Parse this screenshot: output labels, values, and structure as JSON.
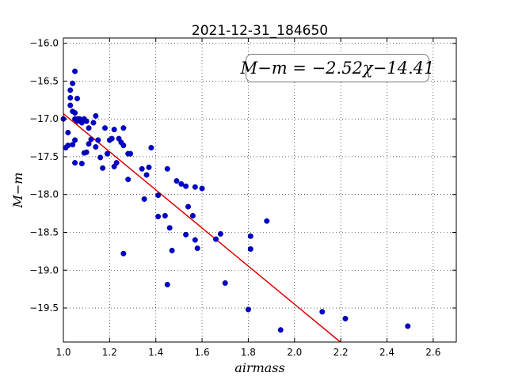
{
  "chart_data": {
    "type": "scatter",
    "title": "2021-12-31_184650",
    "xlabel": "airmass",
    "ylabel": "M−m",
    "xlim": [
      1.0,
      2.7
    ],
    "ylim": [
      -19.95,
      -15.93
    ],
    "y_inverted": true,
    "grid": true,
    "xticks": [
      1.0,
      1.2,
      1.4,
      1.6,
      1.8,
      2.0,
      2.2,
      2.4,
      2.6
    ],
    "xtick_labels": [
      "1.0",
      "1.2",
      "1.4",
      "1.6",
      "1.8",
      "2.0",
      "2.2",
      "2.4",
      "2.6"
    ],
    "yticks": [
      -16.0,
      -16.5,
      -17.0,
      -17.5,
      -18.0,
      -18.5,
      -19.0,
      -19.5
    ],
    "ytick_labels": [
      "−16.0",
      "−16.5",
      "−17.0",
      "−17.5",
      "−18.0",
      "−18.5",
      "−19.0",
      "−19.5"
    ],
    "annotation": "M−m = −2.52χ−14.41",
    "fit": {
      "slope": -2.52,
      "intercept": -14.41,
      "color": "#dd0000"
    },
    "point_color": "#0000cc",
    "series": [
      {
        "points": [
          [
            1.0,
            -17.0
          ],
          [
            1.01,
            -17.38
          ],
          [
            1.02,
            -17.18
          ],
          [
            1.02,
            -17.35
          ],
          [
            1.03,
            -16.62
          ],
          [
            1.03,
            -16.72
          ],
          [
            1.03,
            -16.82
          ],
          [
            1.04,
            -16.53
          ],
          [
            1.04,
            -17.34
          ],
          [
            1.04,
            -16.9
          ],
          [
            1.05,
            -16.37
          ],
          [
            1.05,
            -16.92
          ],
          [
            1.05,
            -17.0
          ],
          [
            1.05,
            -17.28
          ],
          [
            1.05,
            -17.58
          ],
          [
            1.06,
            -16.73
          ],
          [
            1.06,
            -17.0
          ],
          [
            1.06,
            -17.03
          ],
          [
            1.07,
            -17.02
          ],
          [
            1.07,
            -17.0
          ],
          [
            1.08,
            -17.59
          ],
          [
            1.08,
            -17.05
          ],
          [
            1.09,
            -17.0
          ],
          [
            1.09,
            -17.45
          ],
          [
            1.1,
            -17.03
          ],
          [
            1.1,
            -17.44
          ],
          [
            1.11,
            -17.12
          ],
          [
            1.11,
            -17.33
          ],
          [
            1.12,
            -17.27
          ],
          [
            1.13,
            -17.05
          ],
          [
            1.14,
            -16.96
          ],
          [
            1.14,
            -17.37
          ],
          [
            1.15,
            -17.28
          ],
          [
            1.16,
            -17.51
          ],
          [
            1.17,
            -17.65
          ],
          [
            1.18,
            -17.12
          ],
          [
            1.19,
            -17.46
          ],
          [
            1.2,
            -17.28
          ],
          [
            1.21,
            -17.26
          ],
          [
            1.22,
            -17.14
          ],
          [
            1.22,
            -17.63
          ],
          [
            1.23,
            -17.58
          ],
          [
            1.24,
            -17.26
          ],
          [
            1.25,
            -17.31
          ],
          [
            1.26,
            -17.12
          ],
          [
            1.26,
            -17.35
          ],
          [
            1.26,
            -18.78
          ],
          [
            1.28,
            -17.46
          ],
          [
            1.28,
            -17.8
          ],
          [
            1.29,
            -17.46
          ],
          [
            1.34,
            -17.66
          ],
          [
            1.35,
            -18.06
          ],
          [
            1.36,
            -17.74
          ],
          [
            1.37,
            -17.64
          ],
          [
            1.38,
            -17.38
          ],
          [
            1.41,
            -18.01
          ],
          [
            1.41,
            -18.29
          ],
          [
            1.44,
            -18.28
          ],
          [
            1.45,
            -19.19
          ],
          [
            1.45,
            -17.66
          ],
          [
            1.46,
            -18.44
          ],
          [
            1.47,
            -18.74
          ],
          [
            1.49,
            -17.82
          ],
          [
            1.51,
            -17.86
          ],
          [
            1.53,
            -17.89
          ],
          [
            1.53,
            -18.53
          ],
          [
            1.54,
            -18.16
          ],
          [
            1.56,
            -18.28
          ],
          [
            1.57,
            -17.9
          ],
          [
            1.57,
            -18.6
          ],
          [
            1.58,
            -18.71
          ],
          [
            1.6,
            -17.92
          ],
          [
            1.66,
            -18.59
          ],
          [
            1.68,
            -18.52
          ],
          [
            1.7,
            -19.17
          ],
          [
            1.8,
            -19.52
          ],
          [
            1.81,
            -18.55
          ],
          [
            1.81,
            -18.72
          ],
          [
            1.88,
            -18.35
          ],
          [
            1.94,
            -19.79
          ],
          [
            2.12,
            -19.55
          ],
          [
            2.22,
            -19.64
          ],
          [
            2.49,
            -19.74
          ]
        ]
      }
    ]
  }
}
